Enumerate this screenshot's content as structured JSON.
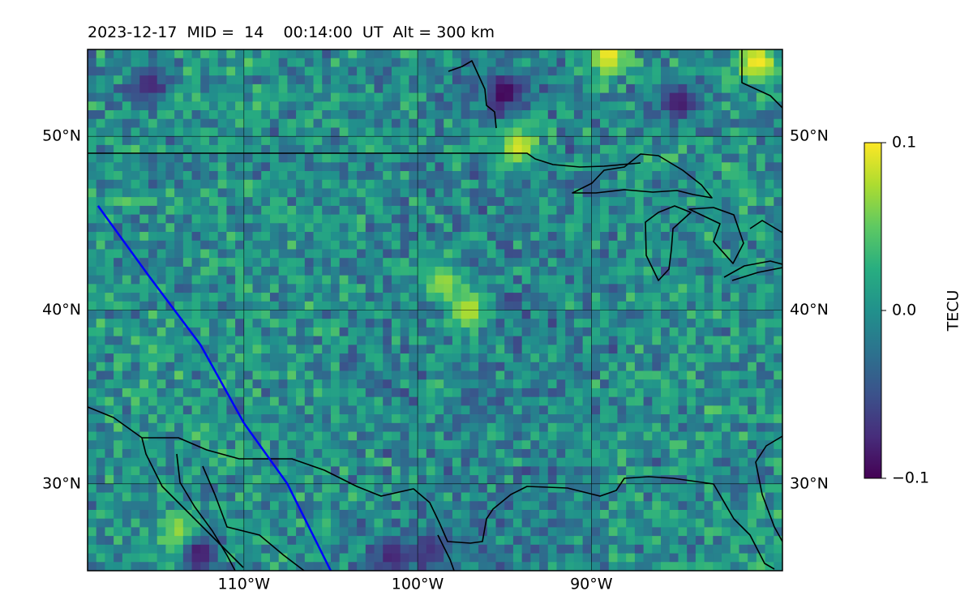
{
  "title": "2023-12-17  MID =  14    00:14:00  UT  Alt = 300 km",
  "chart_data": {
    "type": "heatmap",
    "title": "2023-12-17  MID =  14    00:14:00  UT  Alt = 300 km",
    "projection": "lat-lon map",
    "lon_range": [
      -119,
      -79
    ],
    "lat_range": [
      25,
      55
    ],
    "grid": true,
    "lon_ticks": [
      {
        "value": -110,
        "label": "110°W"
      },
      {
        "value": -100,
        "label": "100°W"
      },
      {
        "value": -90,
        "label": "90°W"
      }
    ],
    "lat_ticks": [
      {
        "value": 30,
        "label": "30°N"
      },
      {
        "value": 40,
        "label": "40°N"
      },
      {
        "value": 50,
        "label": "50°N"
      }
    ],
    "colorbar": {
      "label": "TECU",
      "colormap": "viridis",
      "min": -0.1,
      "max": 0.1,
      "ticks": [
        {
          "value": 0.1,
          "label": "0.1"
        },
        {
          "value": 0.0,
          "label": "0.0"
        },
        {
          "value": -0.1,
          "label": "−0.1"
        }
      ]
    },
    "overlay_track": {
      "color": "#0000ff",
      "lonlat": [
        [
          -118.4,
          46.0
        ],
        [
          -115.5,
          42.0
        ],
        [
          -112.5,
          38.0
        ],
        [
          -110.0,
          33.5
        ],
        [
          -107.5,
          30.0
        ],
        [
          -105.0,
          25.0
        ]
      ]
    },
    "highlights": [
      {
        "lon": -95,
        "lat": 52.5,
        "value": -0.1
      },
      {
        "lon": -85,
        "lat": 52,
        "value": -0.09
      },
      {
        "lon": -89,
        "lat": 54.7,
        "value": 0.1
      },
      {
        "lon": -80.5,
        "lat": 54.3,
        "value": 0.1
      },
      {
        "lon": -94.2,
        "lat": 49.4,
        "value": 0.09
      },
      {
        "lon": -97.1,
        "lat": 40.0,
        "value": 0.08
      },
      {
        "lon": -98.5,
        "lat": 41.6,
        "value": 0.07
      },
      {
        "lon": -113.6,
        "lat": 27.0,
        "value": 0.09
      },
      {
        "lon": -112.5,
        "lat": 26.0,
        "value": -0.09
      },
      {
        "lon": -115.5,
        "lat": 53,
        "value": -0.08
      },
      {
        "lon": -101.5,
        "lat": 25.8,
        "value": -0.08
      },
      {
        "lon": -99.2,
        "lat": 26.2,
        "value": -0.07
      }
    ]
  }
}
